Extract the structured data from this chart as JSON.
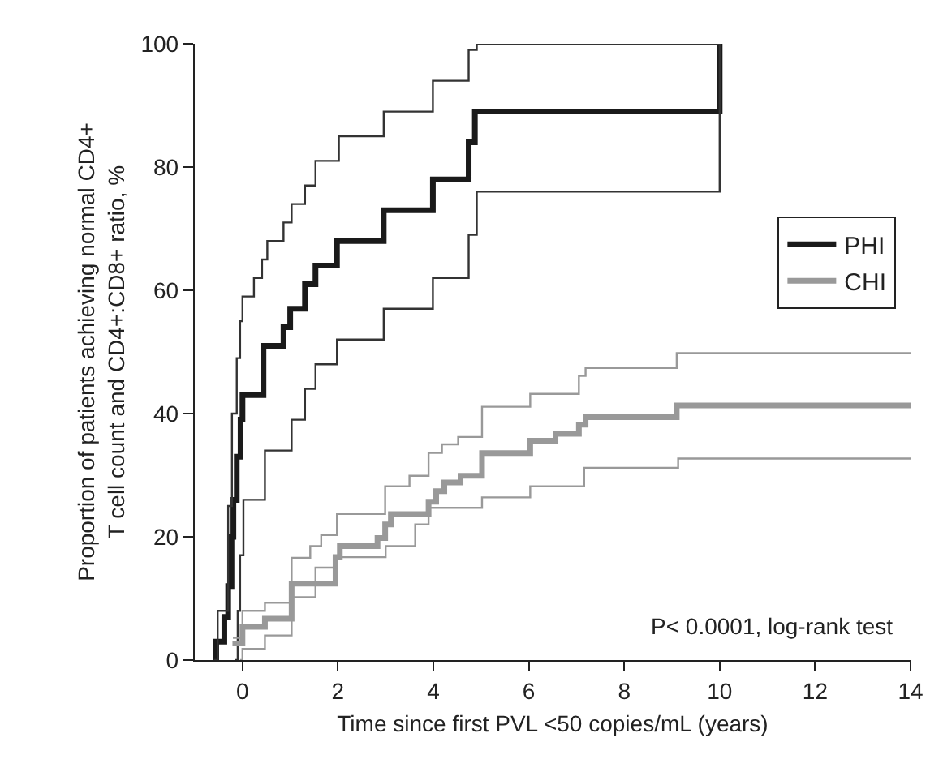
{
  "chart_data": {
    "type": "step",
    "xlabel": "Time since first PVL <50 copies/mL (years)",
    "ylabel": "Proportion of patients achieving normal CD4+\nT cell count and CD4+:CD8+ ratio, %",
    "xlim": [
      -1,
      14
    ],
    "xticks": [
      0,
      2,
      4,
      6,
      8,
      10,
      12,
      14
    ],
    "ylim": [
      0,
      100
    ],
    "yticks": [
      0,
      20,
      40,
      60,
      80,
      100
    ],
    "legend": "right",
    "marker": "none",
    "line_style": "solid",
    "annotations": [
      "P< 0.0001, log-rank test"
    ],
    "series": [
      {
        "name": "PHI",
        "color": "#1a1a1a",
        "x": [
          -0.6,
          -0.55,
          -0.38,
          -0.3,
          -0.23,
          -0.19,
          -0.12,
          -0.04,
          0,
          0.44,
          0.86,
          1.0,
          1.31,
          1.53,
          1.98,
          2.96,
          3.99,
          4.74,
          4.87,
          10,
          10
        ],
        "values": [
          0,
          3,
          7,
          12,
          20,
          26,
          33,
          39,
          43,
          51,
          54,
          57,
          61,
          64,
          68,
          73,
          78,
          84,
          89,
          89,
          100
        ]
      },
      {
        "color": "#333333",
        "x": [
          -0.6,
          -0.52,
          -0.3,
          -0.22,
          -0.12,
          -0.05,
          0,
          0.24,
          0.41,
          0.52,
          0.86,
          1.03,
          1.31,
          1.53,
          2.02,
          2.96,
          3.99,
          4.74,
          4.91,
          10
        ],
        "values": [
          0,
          8,
          25,
          40,
          49,
          55,
          59,
          62,
          65,
          68,
          71,
          74,
          77,
          81,
          85,
          89,
          94,
          99,
          100,
          100
        ]
      },
      {
        "color": "#333333",
        "x": [
          -0.15,
          -0.1,
          -0.05,
          0.02,
          0.47,
          1.03,
          1.31,
          1.53,
          1.98,
          2.96,
          3.99,
          4.74,
          4.91,
          10,
          10
        ],
        "values": [
          0,
          8,
          17,
          26,
          34,
          39,
          44,
          48,
          52,
          57,
          62,
          69,
          76,
          76,
          100
        ]
      },
      {
        "name": "CHI",
        "color": "#999999",
        "x": [
          -0.21,
          0,
          0.47,
          1.03,
          1.95,
          2.04,
          2.83,
          2.99,
          3.11,
          3.9,
          4.06,
          4.23,
          4.57,
          5.02,
          6.03,
          6.56,
          7.05,
          7.19,
          9.1,
          14
        ],
        "values": [
          2.7,
          5.4,
          6.7,
          12.4,
          16.7,
          18.5,
          19.8,
          22,
          23.7,
          25.7,
          27.4,
          28.8,
          29.9,
          33.6,
          35.6,
          36.7,
          38.2,
          39.4,
          41.3,
          41.3
        ]
      },
      {
        "color": "#999999",
        "x": [
          -0.2,
          0,
          0.47,
          1.03,
          1.42,
          1.65,
          1.98,
          2.99,
          3.5,
          3.9,
          4.18,
          4.52,
          5.02,
          6.03,
          7.05,
          7.19,
          9.1,
          14
        ],
        "values": [
          3.6,
          8,
          9.3,
          16.6,
          18.5,
          20.3,
          23.7,
          28.2,
          29.9,
          33.6,
          35,
          36.2,
          41.1,
          43.2,
          46.1,
          47.4,
          49.8,
          49.8
        ]
      },
      {
        "color": "#999999",
        "x": [
          -0.05,
          0,
          0.47,
          1.03,
          1.53,
          1.98,
          3.0,
          3.62,
          3.9,
          5.02,
          6.03,
          7.16,
          9.13,
          14
        ],
        "values": [
          0,
          1.8,
          4,
          10.2,
          15,
          16.7,
          18.5,
          22,
          24.7,
          26.4,
          28.2,
          31.2,
          32.7,
          32.7
        ]
      }
    ]
  }
}
